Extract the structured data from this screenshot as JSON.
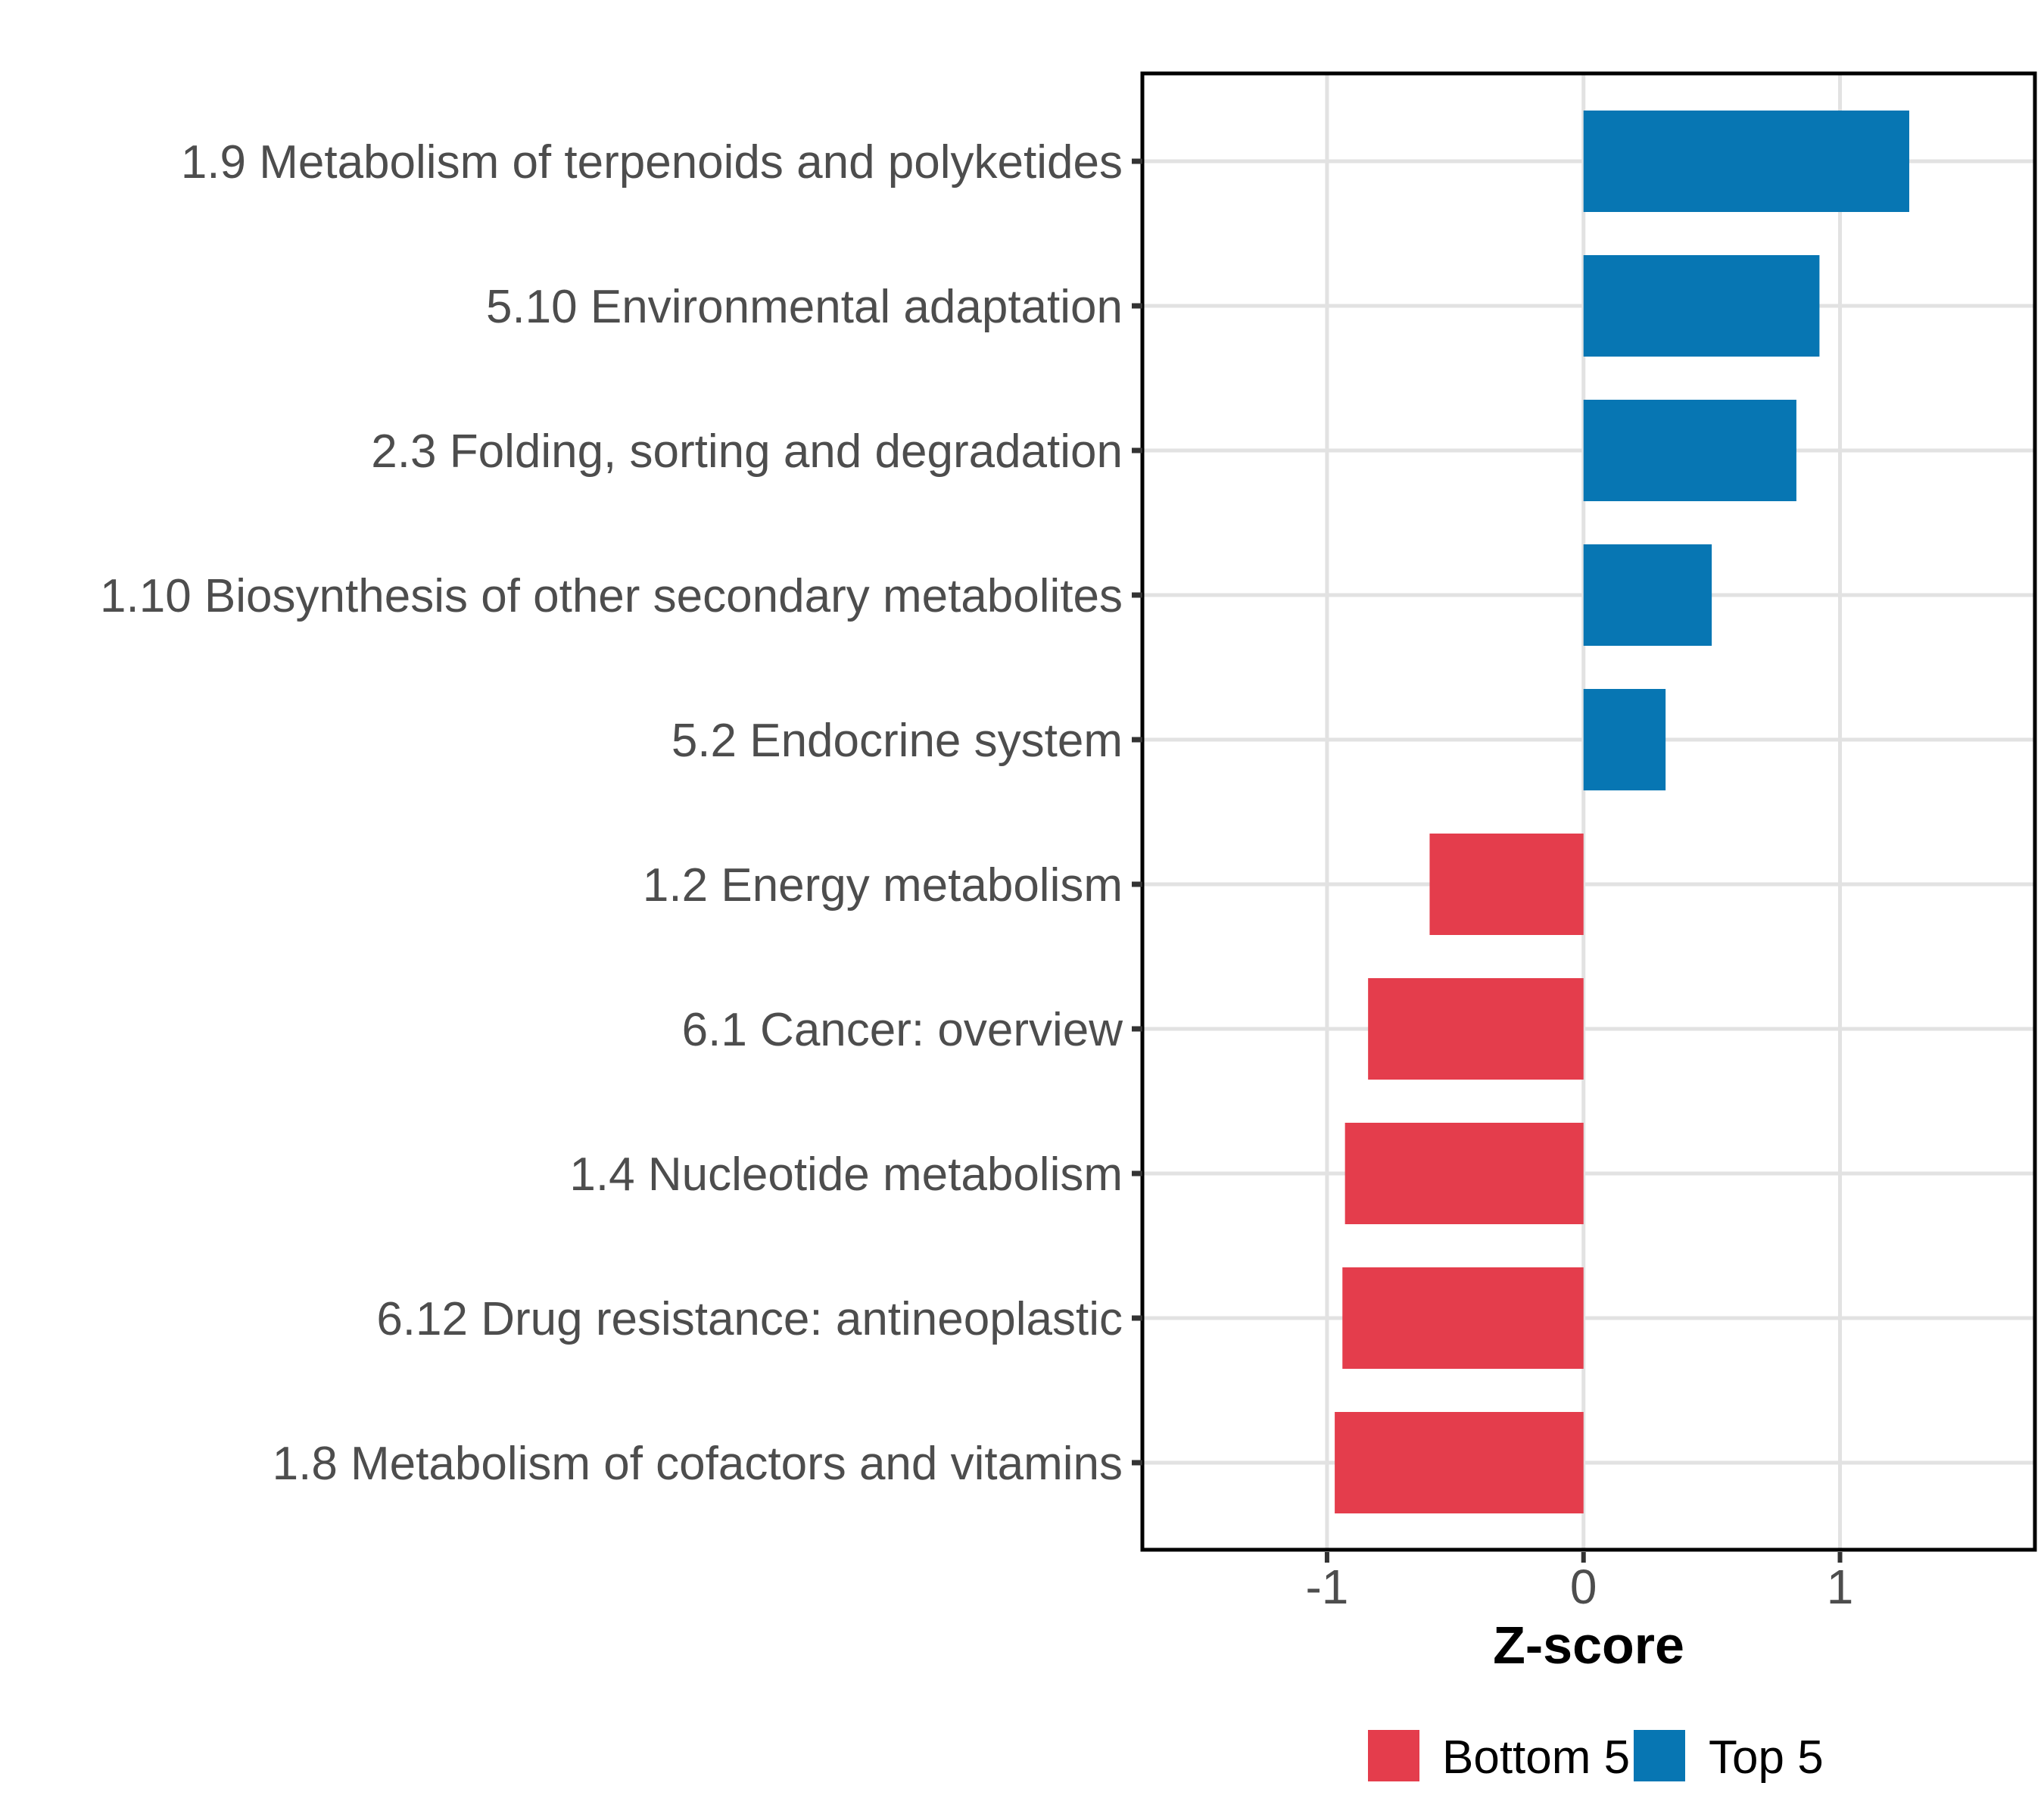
{
  "chart_data": {
    "type": "bar",
    "orientation": "horizontal",
    "title": "",
    "xlabel": "Z-score",
    "ylabel": "",
    "xlim": [
      -1.72,
      1.76
    ],
    "x_ticks": [
      -1,
      0,
      1
    ],
    "x_tick_labels": [
      "-1",
      "0",
      "1"
    ],
    "grid": true,
    "legend_position": "bottom",
    "categories": [
      "1.9 Metabolism of terpenoids and polyketides",
      "5.10 Environmental adaptation",
      "2.3 Folding, sorting and degradation",
      "1.10 Biosynthesis of other secondary metabolites",
      "5.2 Endocrine system",
      "1.2 Energy metabolism",
      "6.1 Cancer: overview",
      "1.4 Nucleotide metabolism",
      "6.12 Drug resistance: antineoplastic",
      "1.8 Metabolism of cofactors and vitamins"
    ],
    "values": [
      1.27,
      0.92,
      0.83,
      0.5,
      0.32,
      -0.6,
      -0.84,
      -0.93,
      -0.94,
      -0.97
    ],
    "bar_groups": [
      "Top 5",
      "Top 5",
      "Top 5",
      "Top 5",
      "Top 5",
      "Bottom 5",
      "Bottom 5",
      "Bottom 5",
      "Bottom 5",
      "Bottom 5"
    ],
    "groups": [
      {
        "name": "Bottom 5",
        "color": "#E43D4C"
      },
      {
        "name": "Top 5",
        "color": "#0776B3"
      }
    ],
    "style": {
      "panel_background": "#FFFFFF",
      "panel_border_color": "#000000",
      "gridline_color": "#E2E2E2",
      "tick_color": "#333333",
      "axis_text_color": "#4D4D4D",
      "axis_title_color": "#000000",
      "legend_text_color": "#000000"
    }
  }
}
